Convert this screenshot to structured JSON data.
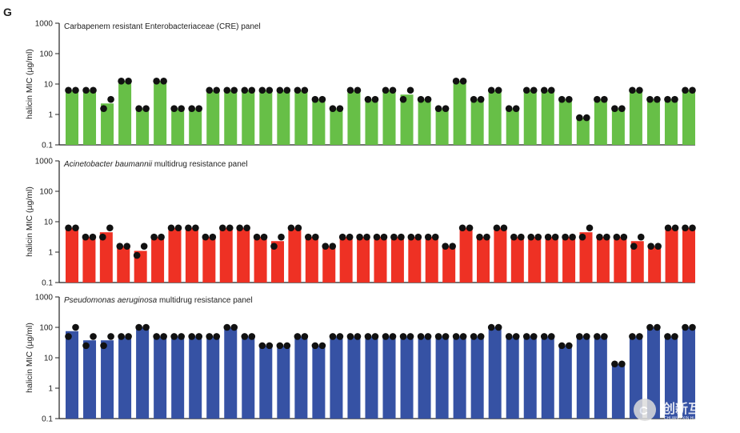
{
  "figure": {
    "panel_letter": "G",
    "watermark": {
      "text": "创新互联",
      "sub": "CHUANG XIN HU LIAN"
    }
  },
  "chart_data": [
    {
      "type": "bar",
      "title_parts": [
        {
          "text": "Carbapenem resistant Enterobacteriaceae (CRE) panel",
          "italic": false
        }
      ],
      "ylabel": "halicin MIC (µg/ml)",
      "yscale": "log",
      "ylim": [
        0.1,
        1000
      ],
      "yticks": [
        "0.1",
        "1",
        "10",
        "100",
        "1000"
      ],
      "color": "#67bf47",
      "values": [
        6.25,
        6.25,
        2.3,
        12.5,
        1.56,
        12.5,
        1.56,
        1.56,
        6.25,
        6.25,
        6.25,
        6.25,
        6.25,
        6.25,
        3.13,
        1.56,
        6.25,
        3.13,
        6.25,
        4.5,
        3.13,
        1.56,
        12.5,
        3.13,
        6.25,
        1.56,
        6.25,
        6.25,
        3.13,
        0.78,
        3.13,
        1.56,
        6.25,
        3.13,
        3.13,
        6.25
      ],
      "replicates": [
        [
          6.25,
          6.25
        ],
        [
          6.25,
          6.25
        ],
        [
          1.56,
          3.13
        ],
        [
          12.5,
          12.5
        ],
        [
          1.56,
          1.56
        ],
        [
          12.5,
          12.5
        ],
        [
          1.56,
          1.56
        ],
        [
          1.56,
          1.56
        ],
        [
          6.25,
          6.25
        ],
        [
          6.25,
          6.25
        ],
        [
          6.25,
          6.25
        ],
        [
          6.25,
          6.25
        ],
        [
          6.25,
          6.25
        ],
        [
          6.25,
          6.25
        ],
        [
          3.13,
          3.13
        ],
        [
          1.56,
          1.56
        ],
        [
          6.25,
          6.25
        ],
        [
          3.13,
          3.13
        ],
        [
          6.25,
          6.25
        ],
        [
          3.13,
          6.25
        ],
        [
          3.13,
          3.13
        ],
        [
          1.56,
          1.56
        ],
        [
          12.5,
          12.5
        ],
        [
          3.13,
          3.13
        ],
        [
          6.25,
          6.25
        ],
        [
          1.56,
          1.56
        ],
        [
          6.25,
          6.25
        ],
        [
          6.25,
          6.25
        ],
        [
          3.13,
          3.13
        ],
        [
          0.78,
          0.78
        ],
        [
          3.13,
          3.13
        ],
        [
          1.56,
          1.56
        ],
        [
          6.25,
          6.25
        ],
        [
          3.13,
          3.13
        ],
        [
          3.13,
          3.13
        ],
        [
          6.25,
          6.25
        ]
      ]
    },
    {
      "type": "bar",
      "title_parts": [
        {
          "text": "Acinetobacter baumannii",
          "italic": true
        },
        {
          "text": " multidrug resistance panel",
          "italic": false
        }
      ],
      "ylabel": "halicin MIC (µg/ml)",
      "yscale": "log",
      "ylim": [
        0.1,
        1000
      ],
      "yticks": [
        "0.1",
        "1",
        "10",
        "100",
        "1000"
      ],
      "color": "#ee3124",
      "values": [
        6.25,
        3.13,
        4.5,
        1.56,
        1.1,
        3.13,
        6.25,
        6.25,
        3.13,
        6.25,
        6.25,
        3.13,
        2.3,
        6.25,
        3.13,
        1.56,
        3.13,
        3.13,
        3.13,
        3.13,
        3.13,
        3.13,
        1.56,
        6.25,
        3.13,
        6.25,
        3.13,
        3.13,
        3.13,
        3.13,
        4.5,
        3.13,
        3.13,
        2.3,
        1.56,
        6.25,
        6.25
      ],
      "replicates": [
        [
          6.25,
          6.25
        ],
        [
          3.13,
          3.13
        ],
        [
          3.13,
          6.25
        ],
        [
          1.56,
          1.56
        ],
        [
          0.78,
          1.56
        ],
        [
          3.13,
          3.13
        ],
        [
          6.25,
          6.25
        ],
        [
          6.25,
          6.25
        ],
        [
          3.13,
          3.13
        ],
        [
          6.25,
          6.25
        ],
        [
          6.25,
          6.25
        ],
        [
          3.13,
          3.13
        ],
        [
          1.56,
          3.13
        ],
        [
          6.25,
          6.25
        ],
        [
          3.13,
          3.13
        ],
        [
          1.56,
          1.56
        ],
        [
          3.13,
          3.13
        ],
        [
          3.13,
          3.13
        ],
        [
          3.13,
          3.13
        ],
        [
          3.13,
          3.13
        ],
        [
          3.13,
          3.13
        ],
        [
          3.13,
          3.13
        ],
        [
          1.56,
          1.56
        ],
        [
          6.25,
          6.25
        ],
        [
          3.13,
          3.13
        ],
        [
          6.25,
          6.25
        ],
        [
          3.13,
          3.13
        ],
        [
          3.13,
          3.13
        ],
        [
          3.13,
          3.13
        ],
        [
          3.13,
          3.13
        ],
        [
          3.13,
          6.25
        ],
        [
          3.13,
          3.13
        ],
        [
          3.13,
          3.13
        ],
        [
          1.56,
          3.13
        ],
        [
          1.56,
          1.56
        ],
        [
          6.25,
          6.25
        ],
        [
          6.25,
          6.25
        ]
      ]
    },
    {
      "type": "bar",
      "title_parts": [
        {
          "text": "Pseudomonas aeruginosa",
          "italic": true
        },
        {
          "text": " multidrug resistance panel",
          "italic": false
        }
      ],
      "ylabel": "halicin MIC (µg/ml)",
      "yscale": "log",
      "ylim": [
        0.1,
        1000
      ],
      "yticks": [
        "0.1",
        "1",
        "10",
        "100",
        "1000"
      ],
      "color": "#3652a4",
      "values": [
        75,
        37.5,
        37.5,
        50,
        100,
        50,
        50,
        50,
        50,
        100,
        50,
        25,
        25,
        50,
        25,
        50,
        50,
        50,
        50,
        50,
        50,
        50,
        50,
        50,
        100,
        50,
        50,
        50,
        25,
        50,
        50,
        6.25,
        50,
        100,
        50,
        100
      ],
      "replicates": [
        [
          50,
          100
        ],
        [
          25,
          50
        ],
        [
          25,
          50
        ],
        [
          50,
          50
        ],
        [
          100,
          100
        ],
        [
          50,
          50
        ],
        [
          50,
          50
        ],
        [
          50,
          50
        ],
        [
          50,
          50
        ],
        [
          100,
          100
        ],
        [
          50,
          50
        ],
        [
          25,
          25
        ],
        [
          25,
          25
        ],
        [
          50,
          50
        ],
        [
          25,
          25
        ],
        [
          50,
          50
        ],
        [
          50,
          50
        ],
        [
          50,
          50
        ],
        [
          50,
          50
        ],
        [
          50,
          50
        ],
        [
          50,
          50
        ],
        [
          50,
          50
        ],
        [
          50,
          50
        ],
        [
          50,
          50
        ],
        [
          100,
          100
        ],
        [
          50,
          50
        ],
        [
          50,
          50
        ],
        [
          50,
          50
        ],
        [
          25,
          25
        ],
        [
          50,
          50
        ],
        [
          50,
          50
        ],
        [
          6.25,
          6.25
        ],
        [
          50,
          50
        ],
        [
          100,
          100
        ],
        [
          50,
          50
        ],
        [
          100,
          100
        ]
      ]
    }
  ]
}
